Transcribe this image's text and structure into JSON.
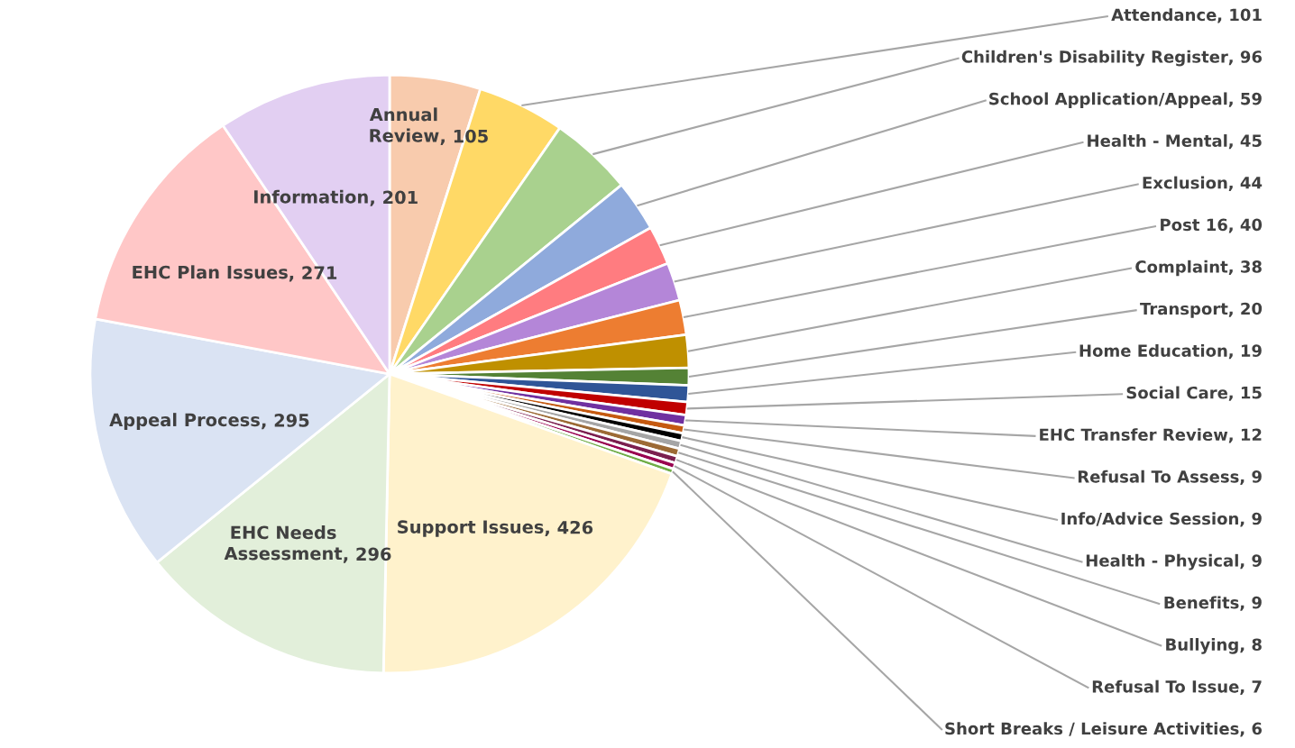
{
  "chart_data": {
    "type": "pie",
    "value_labels": [
      ", 105",
      ", 101",
      ", 96",
      ", 59",
      ", 45",
      ", 44",
      ", 40",
      ", 38",
      ", 20",
      ", 19",
      ", 15",
      ", 12",
      ", 9",
      ", 9",
      ", 9",
      ", 9",
      ", 8",
      ", 7",
      ", 6",
      ", 426",
      ", 296",
      ", 295",
      ", 271",
      ", 201"
    ],
    "categories": [
      "Annual Review",
      "Attendance",
      "Children's Disability Register",
      "School Application/Appeal",
      "Health - Mental",
      "Exclusion",
      "Post 16",
      "Complaint",
      "Transport",
      "Home Education",
      "Social Care",
      "EHC Transfer Review",
      "Refusal To Assess",
      "Info/Advice Session",
      "Health - Physical",
      "Benefits",
      "Bullying",
      "Refusal To Issue",
      "Short Breaks / Leisure Activities",
      "Support Issues",
      "EHC Needs Assessment",
      "Appeal Process",
      "EHC Plan Issues",
      "Information"
    ],
    "values": [
      105,
      101,
      96,
      59,
      45,
      44,
      40,
      38,
      20,
      19,
      15,
      12,
      9,
      9,
      9,
      9,
      8,
      7,
      6,
      426,
      296,
      295,
      271,
      201
    ],
    "colors": [
      "#f8cbad",
      "#ffd966",
      "#a9d18e",
      "#8faadc",
      "#ff7c80",
      "#b486d8",
      "#ed7d31",
      "#bf9000",
      "#548235",
      "#2f5597",
      "#c00000",
      "#7030a0",
      "#c55a11",
      "#000000",
      "#a5a5a5",
      "#9c6a35",
      "#7b1f4f",
      "#990050",
      "#70ad47",
      "#fff2cc",
      "#e2efda",
      "#dae3f3",
      "#ffc7c7",
      "#e2cff2"
    ]
  }
}
